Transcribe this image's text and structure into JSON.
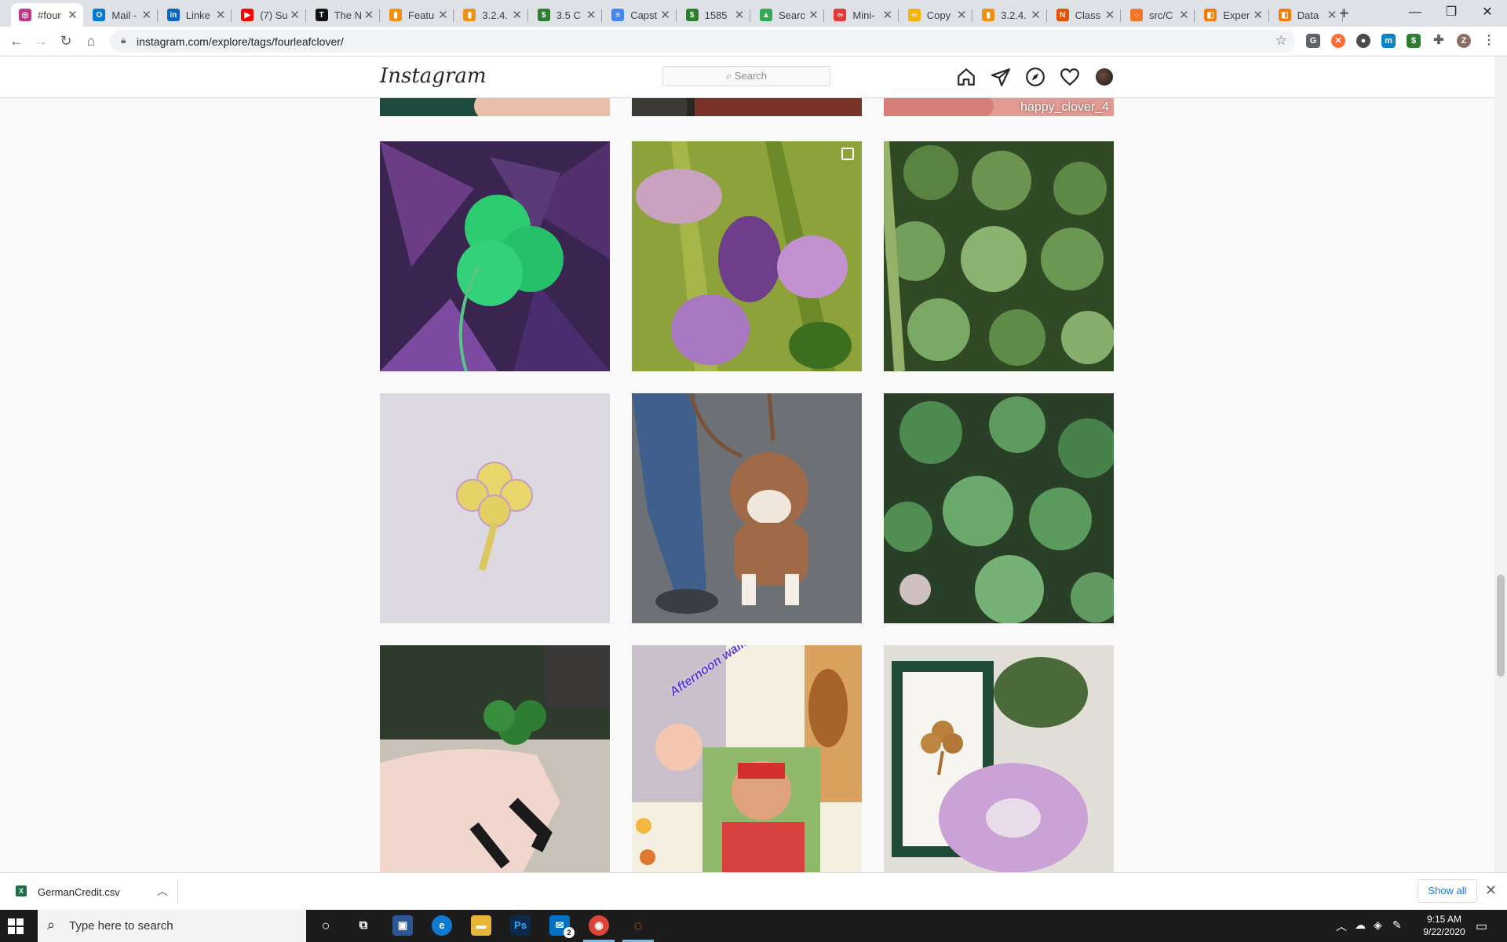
{
  "browser": {
    "tabs": [
      {
        "title": "#four",
        "color": "#c13584",
        "glyph": "◎",
        "active": true
      },
      {
        "title": "Mail -",
        "color": "#0078d4",
        "glyph": "O"
      },
      {
        "title": "Linke",
        "color": "#0a66c2",
        "glyph": "in"
      },
      {
        "title": "(7) Su",
        "color": "#ff0000",
        "glyph": "▶"
      },
      {
        "title": "The N",
        "color": "#111111",
        "glyph": "T"
      },
      {
        "title": "Featu",
        "color": "#f29111",
        "glyph": "▮"
      },
      {
        "title": "3.2.4.",
        "color": "#f29111",
        "glyph": "▮"
      },
      {
        "title": "3.5 C",
        "color": "#2e7d32",
        "glyph": "$"
      },
      {
        "title": "Capst",
        "color": "#4285f4",
        "glyph": "≡"
      },
      {
        "title": "1585",
        "color": "#2e7d32",
        "glyph": "$"
      },
      {
        "title": "Searc",
        "color": "#34a853",
        "glyph": "▲"
      },
      {
        "title": "Mini-",
        "color": "#e53935",
        "glyph": "∞"
      },
      {
        "title": "Copy",
        "color": "#f4b400",
        "glyph": "∞"
      },
      {
        "title": "3.2.4.",
        "color": "#f29111",
        "glyph": "▮"
      },
      {
        "title": "Class",
        "color": "#e65100",
        "glyph": "N"
      },
      {
        "title": "src/C",
        "color": "#f37626",
        "glyph": "◌"
      },
      {
        "title": "Exper",
        "color": "#f57c00",
        "glyph": "◧"
      },
      {
        "title": "Data",
        "color": "#f57c00",
        "glyph": "◧"
      }
    ],
    "url": "instagram.com/explore/tags/fourleafclover/"
  },
  "instagram": {
    "logo": "Instagram",
    "search_placeholder": "Search",
    "top_row_overlay": "happy_clover_4"
  },
  "posts": [
    {
      "subject": "Shamrock on purple oxalis leaves"
    },
    {
      "subject": "Purple flowers with green leaves",
      "multi": true
    },
    {
      "subject": "Field of clover leaves"
    },
    {
      "subject": "Drawing of a yellow four-leaf clover"
    },
    {
      "subject": "Brown bulldog on a leash"
    },
    {
      "subject": "Clover leaves close-up"
    },
    {
      "subject": "Hand holding a four-leaf clover"
    },
    {
      "subject": "Afternoon walk collage",
      "overlay": "Afternoon walk"
    },
    {
      "subject": "Framed pressed clover and scrunchie"
    }
  ],
  "downloads": {
    "file": "GermanCredit.csv",
    "show_all": "Show all"
  },
  "taskbar": {
    "search_placeholder": "Type here to search",
    "time": "9:15 AM",
    "date": "9/22/2020",
    "mail_badge": "2"
  }
}
